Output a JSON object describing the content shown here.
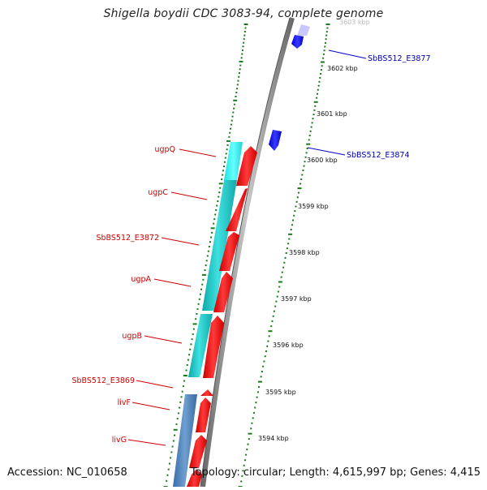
{
  "title": "Shigella boydii CDC 3083-94, complete genome",
  "footer": {
    "accession": "Accession: NC_010658",
    "summary": "Topology: circular; Length: 4,615,997 bp; Genes: 4,415"
  },
  "colors": {
    "forward_gene": "#ff0000",
    "reverse_gene_blue": "#1a1aff",
    "cds_cyan": "#1fc6c6",
    "cds_steel": "#4a7fb5",
    "tick": "#1a7a1a",
    "backbone": "#8a8a8a",
    "label_red": "#cc0000",
    "label_blue": "#0000aa"
  },
  "scale_labels": [
    "3603 kbp",
    "3602 kbp",
    "3601 kbp",
    "3600 kbp",
    "3599 kbp",
    "3598 kbp",
    "3597 kbp",
    "3596 kbp",
    "3595 kbp",
    "3594 kbp"
  ],
  "gene_labels": {
    "left": [
      "ugpQ",
      "ugpC",
      "SbBS512_E3872",
      "ugpA",
      "ugpB",
      "SbBS512_E3869",
      "livF",
      "livG"
    ],
    "right": [
      "SbBS512_E3877",
      "SbBS512_E3874"
    ]
  }
}
